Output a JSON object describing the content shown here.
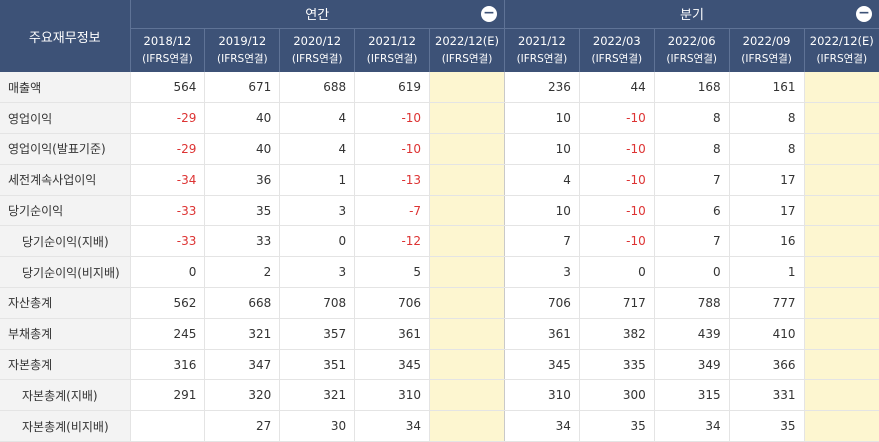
{
  "header": {
    "title": "주요재무정보",
    "annual_label": "연간",
    "quarterly_label": "분기",
    "annual_periods": [
      {
        "period": "2018/12",
        "basis": "(IFRS연결)"
      },
      {
        "period": "2019/12",
        "basis": "(IFRS연결)"
      },
      {
        "period": "2020/12",
        "basis": "(IFRS연결)"
      },
      {
        "period": "2021/12",
        "basis": "(IFRS연결)"
      },
      {
        "period": "2022/12(E)",
        "basis": "(IFRS연결)"
      }
    ],
    "quarterly_periods": [
      {
        "period": "2021/12",
        "basis": "(IFRS연결)"
      },
      {
        "period": "2022/03",
        "basis": "(IFRS연결)"
      },
      {
        "period": "2022/06",
        "basis": "(IFRS연결)"
      },
      {
        "period": "2022/09",
        "basis": "(IFRS연결)"
      },
      {
        "period": "2022/12(E)",
        "basis": "(IFRS연결)"
      }
    ],
    "collapse_icon": "minus-circle-icon"
  },
  "colors": {
    "header_bg": "#3d5277",
    "estimate_bg": "#fdf6d0",
    "negative": "#d33333",
    "label_bg": "#f3f3f3"
  },
  "rows": [
    {
      "label": "매출액",
      "indent": false,
      "annual": [
        "564",
        "671",
        "688",
        "619",
        ""
      ],
      "quarterly": [
        "236",
        "44",
        "168",
        "161",
        ""
      ]
    },
    {
      "label": "영업이익",
      "indent": false,
      "annual": [
        "-29",
        "40",
        "4",
        "-10",
        ""
      ],
      "quarterly": [
        "10",
        "-10",
        "8",
        "8",
        ""
      ]
    },
    {
      "label": "영업이익(발표기준)",
      "indent": false,
      "annual": [
        "-29",
        "40",
        "4",
        "-10",
        ""
      ],
      "quarterly": [
        "10",
        "-10",
        "8",
        "8",
        ""
      ]
    },
    {
      "label": "세전계속사업이익",
      "indent": false,
      "annual": [
        "-34",
        "36",
        "1",
        "-13",
        ""
      ],
      "quarterly": [
        "4",
        "-10",
        "7",
        "17",
        ""
      ]
    },
    {
      "label": "당기순이익",
      "indent": false,
      "annual": [
        "-33",
        "35",
        "3",
        "-7",
        ""
      ],
      "quarterly": [
        "10",
        "-10",
        "6",
        "17",
        ""
      ]
    },
    {
      "label": "당기순이익(지배)",
      "indent": true,
      "annual": [
        "-33",
        "33",
        "0",
        "-12",
        ""
      ],
      "quarterly": [
        "7",
        "-10",
        "7",
        "16",
        ""
      ]
    },
    {
      "label": "당기순이익(비지배)",
      "indent": true,
      "annual": [
        "0",
        "2",
        "3",
        "5",
        ""
      ],
      "quarterly": [
        "3",
        "0",
        "0",
        "1",
        ""
      ]
    },
    {
      "label": "자산총계",
      "indent": false,
      "annual": [
        "562",
        "668",
        "708",
        "706",
        ""
      ],
      "quarterly": [
        "706",
        "717",
        "788",
        "777",
        ""
      ]
    },
    {
      "label": "부채총계",
      "indent": false,
      "annual": [
        "245",
        "321",
        "357",
        "361",
        ""
      ],
      "quarterly": [
        "361",
        "382",
        "439",
        "410",
        ""
      ]
    },
    {
      "label": "자본총계",
      "indent": false,
      "annual": [
        "316",
        "347",
        "351",
        "345",
        ""
      ],
      "quarterly": [
        "345",
        "335",
        "349",
        "366",
        ""
      ]
    },
    {
      "label": "자본총계(지배)",
      "indent": true,
      "annual": [
        "291",
        "320",
        "321",
        "310",
        ""
      ],
      "quarterly": [
        "310",
        "300",
        "315",
        "331",
        ""
      ]
    },
    {
      "label": "자본총계(비지배)",
      "indent": true,
      "annual": [
        "",
        "27",
        "30",
        "34",
        ""
      ],
      "quarterly": [
        "34",
        "35",
        "34",
        "35",
        ""
      ]
    }
  ]
}
